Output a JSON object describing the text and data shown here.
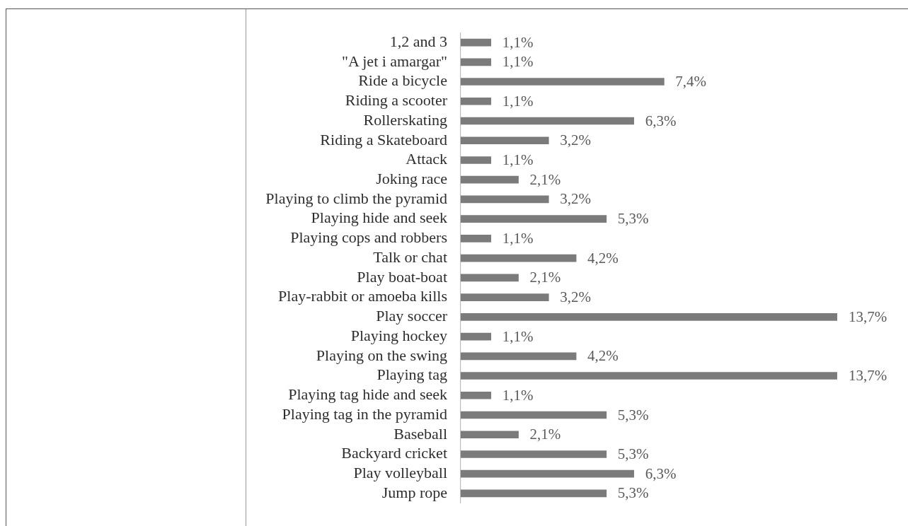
{
  "chart_data": {
    "type": "bar",
    "orientation": "horizontal",
    "categories": [
      "1,2 and 3",
      "\"A jet i amargar\"",
      "Ride a bicycle",
      "Riding a scooter",
      "Rollerskating",
      "Riding a Skateboard",
      "Attack",
      "Joking race",
      "Playing to climb the pyramid",
      "Playing hide and seek",
      "Playing cops and robbers",
      "Talk or chat",
      "Play boat-boat",
      "Play-rabbit or amoeba kills",
      "Play soccer",
      "Playing hockey",
      "Playing on the swing",
      "Playing tag",
      "Playing tag hide and seek",
      "Playing tag in the pyramid",
      "Baseball",
      "Backyard cricket",
      "Play volleyball",
      "Jump rope"
    ],
    "values": [
      1.1,
      1.1,
      7.4,
      1.1,
      6.3,
      3.2,
      1.1,
      2.1,
      3.2,
      5.3,
      1.1,
      4.2,
      2.1,
      3.2,
      13.7,
      1.1,
      4.2,
      13.7,
      1.1,
      5.3,
      2.1,
      5.3,
      6.3,
      5.3
    ],
    "value_labels": [
      "1,1%",
      "1,1%",
      "7,4%",
      "1,1%",
      "6,3%",
      "3,2%",
      "1,1%",
      "2,1%",
      "3,2%",
      "5,3%",
      "1,1%",
      "4,2%",
      "2,1%",
      "3,2%",
      "13,7%",
      "1,1%",
      "4,2%",
      "13,7%",
      "1,1%",
      "5,3%",
      "2,1%",
      "5,3%",
      "6,3%",
      "5,3%"
    ],
    "color": "#7b7b7b",
    "xlim": [
      0,
      13.7
    ],
    "tick_labels": "y"
  }
}
